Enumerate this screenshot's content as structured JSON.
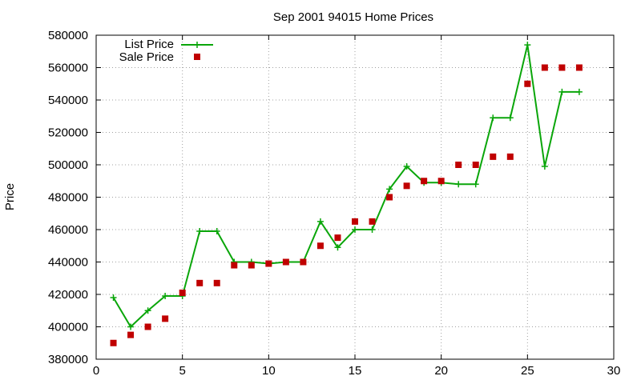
{
  "chart_data": {
    "type": "line",
    "title": "Sep 2001 94015 Home Prices",
    "xlabel": "",
    "ylabel": "Price",
    "xlim": [
      0,
      30
    ],
    "ylim": [
      380000,
      580000
    ],
    "xticks": [
      0,
      5,
      10,
      15,
      20,
      25,
      30
    ],
    "yticks": [
      380000,
      400000,
      420000,
      440000,
      460000,
      480000,
      500000,
      520000,
      540000,
      560000,
      580000
    ],
    "grid": true,
    "legend_position": "top-left",
    "series": [
      {
        "name": "List Price",
        "style": "line+cross",
        "color": "#0aa60a",
        "x": [
          1,
          2,
          3,
          4,
          5,
          6,
          7,
          8,
          9,
          10,
          11,
          12,
          13,
          14,
          15,
          16,
          17,
          18,
          19,
          20,
          21,
          22,
          23,
          24,
          25,
          26,
          27,
          28
        ],
        "y": [
          418000,
          400000,
          410000,
          419000,
          419000,
          459000,
          459000,
          440000,
          440000,
          439000,
          440000,
          440000,
          465000,
          449000,
          460000,
          460000,
          485000,
          499000,
          489000,
          489000,
          488000,
          488000,
          529000,
          529000,
          574000,
          499000,
          545000,
          545000
        ]
      },
      {
        "name": "Sale Price",
        "style": "square",
        "color": "#c00000",
        "x": [
          1,
          2,
          3,
          4,
          5,
          6,
          7,
          8,
          9,
          10,
          11,
          12,
          13,
          14,
          15,
          16,
          17,
          18,
          19,
          20,
          21,
          22,
          23,
          24,
          25,
          26,
          27,
          28
        ],
        "y": [
          390000,
          395000,
          400000,
          405000,
          421000,
          427000,
          427000,
          438000,
          438000,
          439000,
          440000,
          440000,
          450000,
          455000,
          465000,
          465000,
          480000,
          487000,
          490000,
          490000,
          500000,
          500000,
          505000,
          505000,
          550000,
          560000,
          560000,
          560000
        ]
      }
    ]
  }
}
